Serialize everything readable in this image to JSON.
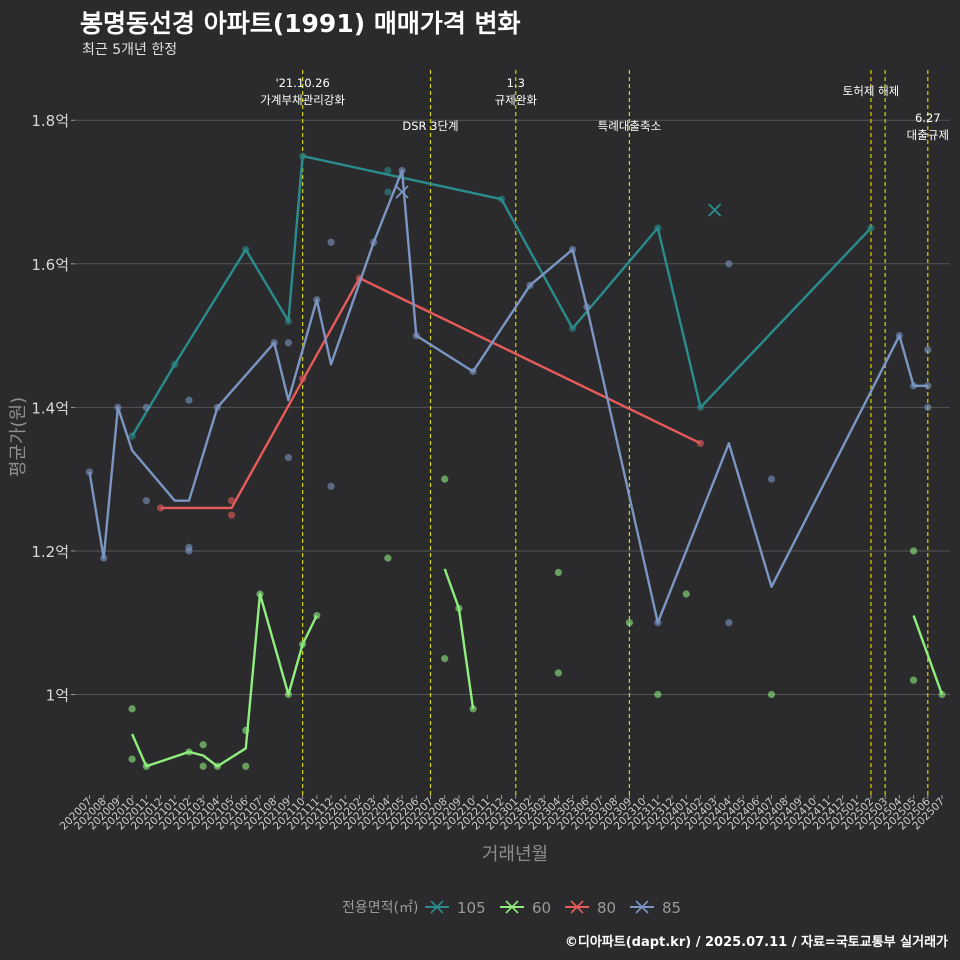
{
  "chart_data": {
    "type": "line",
    "title": "봉명동선경 아파트(1991) 매매가격 변화",
    "subtitle": "최근 5개년 한정",
    "xlabel": "거래년월",
    "ylabel": "평균가(원)",
    "caption": "©디아파트(dapt.kr) / 2025.07.11 / 자료=국토교통부 실거래가",
    "legend_title": "전용면적(㎡)",
    "legend_position": "bottom",
    "x_categories": [
      "202007",
      "202008",
      "202009",
      "202010",
      "202011",
      "202012",
      "202101",
      "202102",
      "202103",
      "202104",
      "202105",
      "202106",
      "202107",
      "202108",
      "202109",
      "202110",
      "202111",
      "202112",
      "202201",
      "202202",
      "202203",
      "202204",
      "202205",
      "202206",
      "202207",
      "202208",
      "202209",
      "202210",
      "202211",
      "202212",
      "202301",
      "202302",
      "202303",
      "202304",
      "202305",
      "202306",
      "202307",
      "202308",
      "202309",
      "202310",
      "202311",
      "202312",
      "202401",
      "202402",
      "202403",
      "202404",
      "202405",
      "202406",
      "202407",
      "202408",
      "202409",
      "202410",
      "202411",
      "202412",
      "202501",
      "202502",
      "202503",
      "202504",
      "202505",
      "202506",
      "202507"
    ],
    "y_ticks": [
      {
        "value": 1.0,
        "label": "1억"
      },
      {
        "value": 1.2,
        "label": "1.2억"
      },
      {
        "value": 1.4,
        "label": "1.4억"
      },
      {
        "value": 1.6,
        "label": "1.6억"
      },
      {
        "value": 1.8,
        "label": "1.8억"
      }
    ],
    "ylim": [
      0.86,
      1.87
    ],
    "grid": true,
    "events": [
      {
        "x": "202110",
        "lines": [
          "'21.10.26",
          "가계부채관리강화"
        ],
        "level": 0
      },
      {
        "x": "202207",
        "lines": [
          "DSR 3단계"
        ],
        "level": 1
      },
      {
        "x": "202301",
        "lines": [
          "1.3",
          "규제완화"
        ],
        "level": 0
      },
      {
        "x": "202309",
        "lines": [
          "특례대출축소"
        ],
        "level": 1
      },
      {
        "x": "202502",
        "lines": [
          "토허제 해제"
        ],
        "level": 0
      },
      {
        "x": "202503",
        "lines": [],
        "level": 0
      },
      {
        "x": "202506",
        "lines": [
          "6.27",
          "대출규제"
        ],
        "level": 1
      }
    ],
    "series": [
      {
        "name": "105",
        "color": "#2a8c8c",
        "line": [
          [
            "202010",
            1.36
          ],
          [
            "202101",
            1.46
          ],
          [
            "202106",
            1.62
          ],
          [
            "202109",
            1.52
          ],
          [
            "202110",
            1.75
          ],
          [
            "202212",
            1.69
          ],
          [
            "202305",
            1.51
          ],
          [
            "202311",
            1.65
          ],
          [
            "202402",
            1.4
          ],
          [
            "202502",
            1.65
          ]
        ],
        "points": [
          [
            "202010",
            1.36
          ],
          [
            "202101",
            1.46
          ],
          [
            "202106",
            1.62
          ],
          [
            "202109",
            1.52
          ],
          [
            "202110",
            1.75
          ],
          [
            "202204",
            1.73
          ],
          [
            "202204",
            1.7
          ],
          [
            "202212",
            1.69
          ],
          [
            "202305",
            1.51
          ],
          [
            "202311",
            1.65
          ],
          [
            "202402",
            1.4
          ],
          [
            "202502",
            1.65
          ]
        ],
        "cross_points": [
          [
            "202403",
            1.675
          ]
        ]
      },
      {
        "name": "60",
        "color": "#90ee7e",
        "line_segments": [
          [
            [
              "202010",
              0.945
            ],
            [
              "202011",
              0.9
            ],
            [
              "202102",
              0.92
            ],
            [
              "202103",
              0.915
            ],
            [
              "202104",
              0.9
            ],
            [
              "202106",
              0.925
            ],
            [
              "202107",
              1.14
            ],
            [
              "202109",
              1.0
            ],
            [
              "202110",
              1.07
            ],
            [
              "202111",
              1.11
            ]
          ],
          [
            [
              "202208",
              1.175
            ],
            [
              "202209",
              1.12
            ],
            [
              "202210",
              0.98
            ]
          ],
          [
            [
              "202505",
              1.11
            ],
            [
              "202507",
              1.0
            ]
          ]
        ],
        "points": [
          [
            "202010",
            0.98
          ],
          [
            "202010",
            0.91
          ],
          [
            "202011",
            0.9
          ],
          [
            "202102",
            0.92
          ],
          [
            "202103",
            0.93
          ],
          [
            "202103",
            0.9
          ],
          [
            "202104",
            0.9
          ],
          [
            "202106",
            0.95
          ],
          [
            "202106",
            0.9
          ],
          [
            "202107",
            1.14
          ],
          [
            "202109",
            1.0
          ],
          [
            "202110",
            1.07
          ],
          [
            "202111",
            1.11
          ],
          [
            "202204",
            1.19
          ],
          [
            "202208",
            1.3
          ],
          [
            "202208",
            1.05
          ],
          [
            "202209",
            1.12
          ],
          [
            "202210",
            0.98
          ],
          [
            "202304",
            1.17
          ],
          [
            "202304",
            1.03
          ],
          [
            "202309",
            1.1
          ],
          [
            "202311",
            1.0
          ],
          [
            "202401",
            1.14
          ],
          [
            "202407",
            1.0
          ],
          [
            "202505",
            1.2
          ],
          [
            "202505",
            1.02
          ],
          [
            "202507",
            1.0
          ]
        ]
      },
      {
        "name": "80",
        "color": "#e85b5b",
        "line": [
          [
            "202012",
            1.26
          ],
          [
            "202105",
            1.26
          ],
          [
            "202202",
            1.58
          ],
          [
            "202402",
            1.35
          ]
        ],
        "points": [
          [
            "202012",
            1.26
          ],
          [
            "202105",
            1.27
          ],
          [
            "202105",
            1.25
          ],
          [
            "202110",
            1.44
          ],
          [
            "202202",
            1.58
          ],
          [
            "202402",
            1.35
          ]
        ]
      },
      {
        "name": "85",
        "color": "#7b96c2",
        "line": [
          [
            "202007",
            1.31
          ],
          [
            "202008",
            1.19
          ],
          [
            "202009",
            1.4
          ],
          [
            "202010",
            1.34
          ],
          [
            "202101",
            1.27
          ],
          [
            "202102",
            1.27
          ],
          [
            "202104",
            1.4
          ],
          [
            "202108",
            1.49
          ],
          [
            "202109",
            1.41
          ],
          [
            "202111",
            1.55
          ],
          [
            "202112",
            1.46
          ],
          [
            "202203",
            1.63
          ],
          [
            "202205",
            1.73
          ],
          [
            "202206",
            1.5
          ],
          [
            "202210",
            1.45
          ],
          [
            "202302",
            1.57
          ],
          [
            "202305",
            1.62
          ],
          [
            "202306",
            1.54
          ],
          [
            "202311",
            1.1
          ],
          [
            "202404",
            1.35
          ],
          [
            "202407",
            1.15
          ],
          [
            "202504",
            1.5
          ],
          [
            "202505",
            1.43
          ],
          [
            "202506",
            1.43
          ]
        ],
        "points": [
          [
            "202007",
            1.31
          ],
          [
            "202008",
            1.19
          ],
          [
            "202009",
            1.4
          ],
          [
            "202011",
            1.4
          ],
          [
            "202011",
            1.27
          ],
          [
            "202102",
            1.41
          ],
          [
            "202102",
            1.205
          ],
          [
            "202102",
            1.2
          ],
          [
            "202104",
            1.4
          ],
          [
            "202108",
            1.49
          ],
          [
            "202109",
            1.49
          ],
          [
            "202109",
            1.33
          ],
          [
            "202111",
            1.55
          ],
          [
            "202112",
            1.63
          ],
          [
            "202112",
            1.29
          ],
          [
            "202203",
            1.63
          ],
          [
            "202205",
            1.73
          ],
          [
            "202206",
            1.5
          ],
          [
            "202210",
            1.45
          ],
          [
            "202302",
            1.57
          ],
          [
            "202305",
            1.62
          ],
          [
            "202306",
            1.54
          ],
          [
            "202311",
            1.1
          ],
          [
            "202404",
            1.6
          ],
          [
            "202404",
            1.1
          ],
          [
            "202407",
            1.3
          ],
          [
            "202504",
            1.5
          ],
          [
            "202505",
            1.43
          ],
          [
            "202506",
            1.48
          ],
          [
            "202506",
            1.4
          ],
          [
            "202506",
            1.43
          ]
        ],
        "cross_points": [
          [
            "202205",
            1.7
          ]
        ]
      }
    ]
  }
}
